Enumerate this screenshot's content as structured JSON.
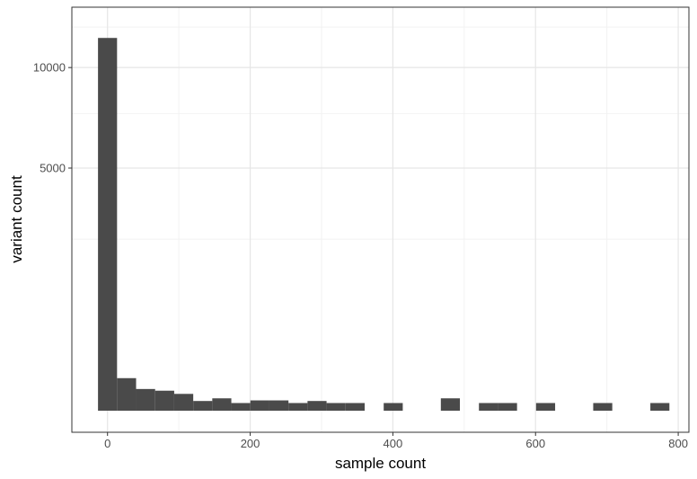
{
  "chart_data": {
    "type": "bar",
    "title": "",
    "xlabel": "sample count",
    "ylabel": "variant count",
    "xlim": [
      -50,
      815
    ],
    "ylim": [
      0,
      12800
    ],
    "y_scale": "sqrt",
    "grid": true,
    "theme": "bw",
    "bar_color": "#4a4a4a",
    "bin_width": 26.7,
    "x_ticks": [
      0,
      200,
      400,
      600,
      800
    ],
    "x_tick_labels": [
      "0",
      "200",
      "400",
      "600",
      "800"
    ],
    "y_ticks": [
      5000,
      10000
    ],
    "y_tick_labels": [
      "5000",
      "10000"
    ],
    "y_minor_grid": [
      2500,
      7500,
      12500
    ],
    "bins": [
      {
        "x": 0,
        "count": 11800
      },
      {
        "x": 26.7,
        "count": 90
      },
      {
        "x": 53.4,
        "count": 40
      },
      {
        "x": 80.1,
        "count": 34
      },
      {
        "x": 106.8,
        "count": 24
      },
      {
        "x": 133.5,
        "count": 8
      },
      {
        "x": 160.2,
        "count": 13
      },
      {
        "x": 186.9,
        "count": 5
      },
      {
        "x": 213.6,
        "count": 9
      },
      {
        "x": 240.3,
        "count": 9
      },
      {
        "x": 267.0,
        "count": 5
      },
      {
        "x": 293.7,
        "count": 8
      },
      {
        "x": 320.4,
        "count": 5
      },
      {
        "x": 347.1,
        "count": 5
      },
      {
        "x": 400.5,
        "count": 5
      },
      {
        "x": 480.6,
        "count": 13
      },
      {
        "x": 534.0,
        "count": 5
      },
      {
        "x": 560.7,
        "count": 5
      },
      {
        "x": 614.1,
        "count": 5
      },
      {
        "x": 694.2,
        "count": 5
      },
      {
        "x": 774.3,
        "count": 5
      }
    ]
  }
}
